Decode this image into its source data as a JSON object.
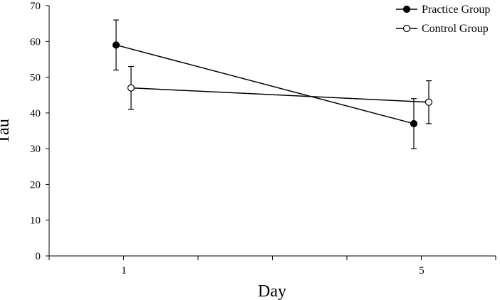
{
  "chart_data": {
    "type": "line",
    "xlabel": "Day",
    "ylabel": "Tau",
    "categories": [
      "1",
      "5"
    ],
    "ylim": [
      0,
      70
    ],
    "yticks": [
      0,
      10,
      20,
      30,
      40,
      50,
      60,
      70
    ],
    "grid": false,
    "legend": "top-right",
    "series": [
      {
        "name": "Practice Group",
        "marker": "filled-circle",
        "color": "#000000",
        "values": [
          59,
          37
        ],
        "error": [
          7,
          7
        ]
      },
      {
        "name": "Control Group",
        "marker": "open-circle",
        "color": "#000000",
        "values": [
          47,
          43
        ],
        "error": [
          6,
          6
        ]
      }
    ]
  }
}
